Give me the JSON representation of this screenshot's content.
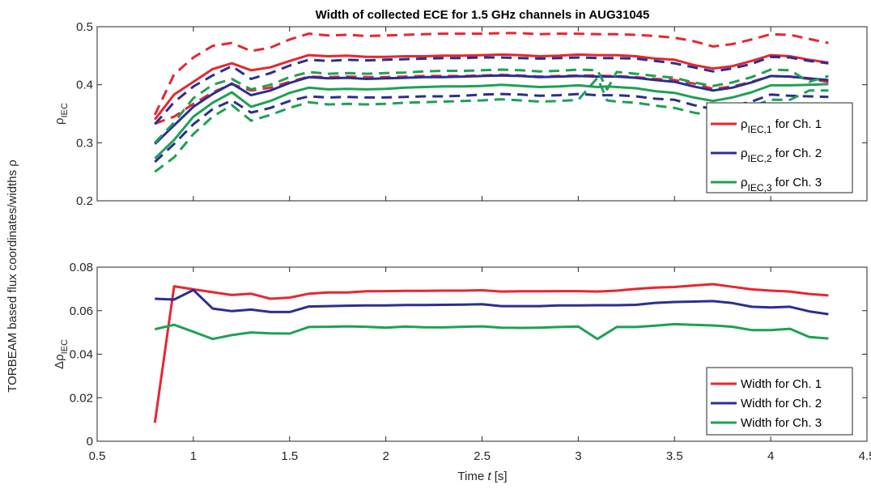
{
  "figure": {
    "title": "Width of collected ECE for 1.5 GHz channels in AUG31045",
    "shared_ylabel": "TORBEAM based flux coordinates/widths ρ",
    "xlabel": "Time t [s]"
  },
  "chart_data": [
    {
      "type": "line",
      "ylabel_main": "ρ",
      "ylabel_sub": "IEC",
      "xlim": [
        0.5,
        4.5
      ],
      "ylim": [
        0.2,
        0.5
      ],
      "xticks": [
        "0.5",
        "1",
        "1.5",
        "2",
        "2.5",
        "3",
        "3.5",
        "4",
        "4.5"
      ],
      "yticks": [
        "0.2",
        "0.3",
        "0.4",
        "0.5"
      ],
      "grid": false,
      "legend_position": "bottom-right",
      "x": [
        0.8,
        0.9,
        1.0,
        1.1,
        1.2,
        1.3,
        1.4,
        1.5,
        1.6,
        1.7,
        1.8,
        1.9,
        2.0,
        2.1,
        2.2,
        2.3,
        2.4,
        2.5,
        2.6,
        2.7,
        2.8,
        2.9,
        3.0,
        3.1,
        3.15,
        3.2,
        3.3,
        3.4,
        3.5,
        3.6,
        3.7,
        3.8,
        3.9,
        4.0,
        4.1,
        4.2,
        4.3
      ],
      "series": [
        {
          "name": "IEC,1",
          "legend_text": "for Ch. 1",
          "color": "#e8262f",
          "dashed": false,
          "values": [
            0.34,
            0.383,
            0.405,
            0.427,
            0.437,
            0.425,
            0.43,
            0.441,
            0.451,
            0.449,
            0.45,
            0.448,
            0.448,
            0.449,
            0.449,
            0.45,
            0.45,
            0.451,
            0.452,
            0.451,
            0.449,
            0.45,
            0.452,
            0.451,
            0.451,
            0.451,
            0.449,
            0.445,
            0.443,
            0.434,
            0.428,
            0.432,
            0.441,
            0.451,
            0.449,
            0.443,
            0.438
          ]
        },
        {
          "name": "",
          "legend_text": "",
          "color": "#e8262f",
          "dashed": true,
          "values": [
            0.348,
            0.418,
            0.447,
            0.467,
            0.472,
            0.458,
            0.464,
            0.478,
            0.488,
            0.485,
            0.486,
            0.484,
            0.485,
            0.486,
            0.487,
            0.488,
            0.488,
            0.488,
            0.489,
            0.489,
            0.487,
            0.488,
            0.488,
            0.487,
            0.487,
            0.487,
            0.486,
            0.484,
            0.481,
            0.475,
            0.466,
            0.47,
            0.478,
            0.487,
            0.486,
            0.479,
            0.472
          ]
        },
        {
          "name": "",
          "legend_text": "",
          "color": "#e8262f",
          "dashed": true,
          "values": [
            0.333,
            0.345,
            0.367,
            0.387,
            0.401,
            0.39,
            0.395,
            0.405,
            0.414,
            0.413,
            0.414,
            0.413,
            0.413,
            0.414,
            0.415,
            0.415,
            0.415,
            0.416,
            0.417,
            0.416,
            0.414,
            0.415,
            0.416,
            0.416,
            0.415,
            0.415,
            0.413,
            0.41,
            0.408,
            0.402,
            0.393,
            0.397,
            0.405,
            0.415,
            0.414,
            0.41,
            0.405
          ]
        },
        {
          "name": "IEC,2",
          "legend_text": "for Ch. 2",
          "color": "#2a2f8f",
          "dashed": false,
          "values": [
            0.298,
            0.33,
            0.362,
            0.384,
            0.402,
            0.382,
            0.39,
            0.403,
            0.413,
            0.411,
            0.412,
            0.41,
            0.411,
            0.412,
            0.413,
            0.413,
            0.414,
            0.415,
            0.416,
            0.415,
            0.413,
            0.414,
            0.415,
            0.414,
            0.414,
            0.414,
            0.412,
            0.408,
            0.405,
            0.397,
            0.39,
            0.395,
            0.404,
            0.415,
            0.414,
            0.411,
            0.408
          ]
        },
        {
          "name": "",
          "legend_text": "",
          "color": "#2a2f8f",
          "dashed": true,
          "values": [
            0.332,
            0.37,
            0.397,
            0.416,
            0.432,
            0.41,
            0.42,
            0.433,
            0.443,
            0.441,
            0.443,
            0.442,
            0.443,
            0.444,
            0.445,
            0.446,
            0.446,
            0.447,
            0.447,
            0.446,
            0.445,
            0.446,
            0.447,
            0.446,
            0.446,
            0.446,
            0.445,
            0.441,
            0.437,
            0.43,
            0.423,
            0.428,
            0.436,
            0.448,
            0.447,
            0.441,
            0.437
          ]
        },
        {
          "name": "",
          "legend_text": "",
          "color": "#2a2f8f",
          "dashed": true,
          "values": [
            0.267,
            0.298,
            0.332,
            0.358,
            0.373,
            0.352,
            0.36,
            0.372,
            0.38,
            0.378,
            0.379,
            0.378,
            0.378,
            0.379,
            0.38,
            0.38,
            0.381,
            0.383,
            0.384,
            0.383,
            0.381,
            0.382,
            0.384,
            0.382,
            0.382,
            0.382,
            0.38,
            0.376,
            0.374,
            0.365,
            0.358,
            0.363,
            0.371,
            0.383,
            0.381,
            0.38,
            0.379
          ]
        },
        {
          "name": "IEC,3",
          "legend_text": "for Ch. 3",
          "color": "#1fa055",
          "dashed": false,
          "values": [
            0.273,
            0.305,
            0.345,
            0.369,
            0.387,
            0.362,
            0.372,
            0.386,
            0.395,
            0.392,
            0.393,
            0.392,
            0.393,
            0.395,
            0.396,
            0.397,
            0.397,
            0.398,
            0.4,
            0.398,
            0.396,
            0.397,
            0.399,
            0.396,
            0.397,
            0.396,
            0.394,
            0.389,
            0.386,
            0.378,
            0.372,
            0.378,
            0.387,
            0.399,
            0.399,
            0.4,
            0.401
          ]
        },
        {
          "name": "",
          "legend_text": "",
          "color": "#1fa055",
          "dashed": true,
          "values": [
            0.3,
            0.335,
            0.377,
            0.4,
            0.41,
            0.392,
            0.4,
            0.413,
            0.422,
            0.419,
            0.42,
            0.419,
            0.42,
            0.421,
            0.423,
            0.424,
            0.424,
            0.425,
            0.426,
            0.425,
            0.423,
            0.424,
            0.426,
            0.425,
            0.392,
            0.422,
            0.419,
            0.415,
            0.412,
            0.404,
            0.398,
            0.404,
            0.413,
            0.426,
            0.425,
            0.405,
            0.415
          ]
        },
        {
          "name": "",
          "legend_text": "",
          "color": "#1fa055",
          "dashed": true,
          "values": [
            0.25,
            0.275,
            0.315,
            0.345,
            0.365,
            0.338,
            0.348,
            0.36,
            0.37,
            0.366,
            0.367,
            0.366,
            0.367,
            0.369,
            0.37,
            0.371,
            0.372,
            0.373,
            0.375,
            0.373,
            0.371,
            0.372,
            0.374,
            0.412,
            0.373,
            0.371,
            0.369,
            0.364,
            0.36,
            0.352,
            0.347,
            0.353,
            0.363,
            0.374,
            0.374,
            0.39,
            0.39
          ]
        }
      ]
    },
    {
      "type": "line",
      "ylabel_main": "Δρ",
      "ylabel_sub": "IEC",
      "xlim": [
        0.5,
        4.5
      ],
      "ylim": [
        0,
        0.08
      ],
      "xticks": [
        "0.5",
        "1",
        "1.5",
        "2",
        "2.5",
        "3",
        "3.5",
        "4",
        "4.5"
      ],
      "yticks": [
        "0",
        "0.02",
        "0.04",
        "0.06",
        "0.08"
      ],
      "grid": false,
      "legend_position": "bottom-right",
      "x": [
        0.8,
        0.9,
        1.0,
        1.1,
        1.2,
        1.3,
        1.4,
        1.5,
        1.6,
        1.7,
        1.8,
        1.9,
        2.0,
        2.1,
        2.2,
        2.3,
        2.4,
        2.5,
        2.6,
        2.7,
        2.8,
        2.9,
        3.0,
        3.1,
        3.2,
        3.3,
        3.4,
        3.5,
        3.6,
        3.7,
        3.8,
        3.9,
        4.0,
        4.1,
        4.2,
        4.3
      ],
      "series": [
        {
          "name": "Width for Ch. 1",
          "color": "#e8262f",
          "values": [
            0.0085,
            0.0712,
            0.0698,
            0.0685,
            0.0672,
            0.0678,
            0.0655,
            0.066,
            0.0678,
            0.0684,
            0.0684,
            0.0689,
            0.069,
            0.0691,
            0.0691,
            0.0692,
            0.0692,
            0.0694,
            0.0688,
            0.0689,
            0.0689,
            0.069,
            0.069,
            0.0688,
            0.0692,
            0.07,
            0.0706,
            0.0709,
            0.0716,
            0.0722,
            0.071,
            0.0698,
            0.0692,
            0.0688,
            0.0677,
            0.067
          ]
        },
        {
          "name": "Width for Ch. 2",
          "color": "#2a2f8f",
          "values": [
            0.0655,
            0.0651,
            0.0695,
            0.061,
            0.0598,
            0.0605,
            0.0594,
            0.0594,
            0.0619,
            0.0621,
            0.0623,
            0.0624,
            0.0624,
            0.0626,
            0.0626,
            0.0627,
            0.0628,
            0.063,
            0.0621,
            0.0621,
            0.0621,
            0.0624,
            0.0624,
            0.0625,
            0.0625,
            0.0627,
            0.0636,
            0.064,
            0.0642,
            0.0644,
            0.0635,
            0.0618,
            0.0615,
            0.0618,
            0.0597,
            0.0584
          ]
        },
        {
          "name": "Width for Ch. 3",
          "color": "#1fa055",
          "values": [
            0.0515,
            0.0535,
            0.0503,
            0.047,
            0.0488,
            0.05,
            0.0496,
            0.0495,
            0.0525,
            0.0526,
            0.0528,
            0.0526,
            0.0522,
            0.0527,
            0.0524,
            0.0523,
            0.0526,
            0.0528,
            0.0522,
            0.0521,
            0.0522,
            0.0525,
            0.0527,
            0.047,
            0.0525,
            0.0525,
            0.0531,
            0.0538,
            0.0535,
            0.0532,
            0.0526,
            0.0511,
            0.0511,
            0.0517,
            0.0479,
            0.0472
          ]
        }
      ]
    }
  ]
}
